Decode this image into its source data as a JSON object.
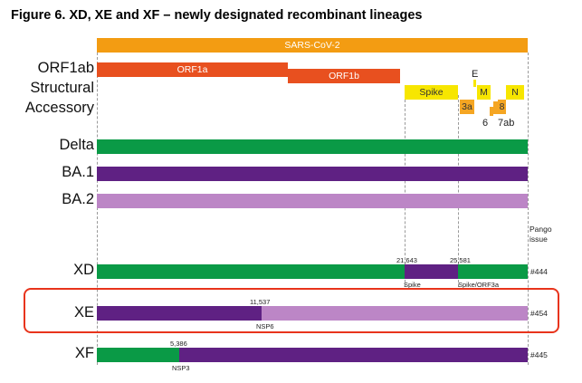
{
  "figure": {
    "title": "Figure 6. XD, XE and XF – newly designated recombinant lineages",
    "pango_issue_header_line1": "Pango",
    "pango_issue_header_line2": "issue"
  },
  "colors": {
    "sars_cov2": "#F39C12",
    "orf": "#E8501F",
    "structural": "#F7E600",
    "accessory": "#F5A623",
    "delta": "#0A9A46",
    "ba1": "#5F2183",
    "ba2": "#BC86C6",
    "highlight": "#E8341C"
  },
  "genome": {
    "sars_cov2_label": "SARS-CoV-2",
    "orf1ab_label": "ORF1ab",
    "orf1a_label": "ORF1a",
    "orf1b_label": "ORF1b",
    "structural_label": "Structural",
    "accessory_label": "Accessory",
    "spike_label": "Spike",
    "e_label": "E",
    "m_label": "M",
    "n_label": "N",
    "orf3a_label": "3a",
    "orf6_label": "6",
    "orf7ab_label": "7ab",
    "orf8_label": "8"
  },
  "lineages": {
    "delta_label": "Delta",
    "ba1_label": "BA.1",
    "ba2_label": "BA.2"
  },
  "recombinants": {
    "xd": {
      "label": "XD",
      "breakpoint1": "21,643",
      "breakpoint2": "25,581",
      "region1": "Spike",
      "region2": "Spike/ORF3a",
      "issue": "#444"
    },
    "xe": {
      "label": "XE",
      "breakpoint": "11,537",
      "region": "NSP6",
      "issue": "#454"
    },
    "xf": {
      "label": "XF",
      "breakpoint": "5,386",
      "region": "NSP3",
      "issue": "#445"
    }
  }
}
